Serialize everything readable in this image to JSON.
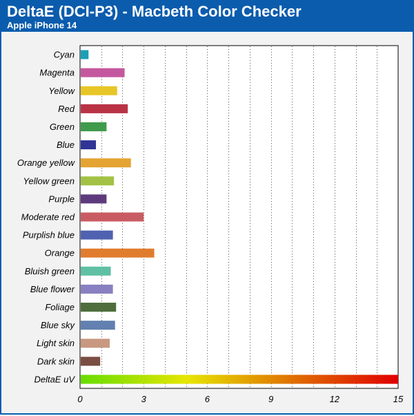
{
  "title": "DeltaE (DCI-P3) - Macbeth Color Checker",
  "subtitle": "Apple iPhone 14",
  "chart_data": {
    "type": "bar",
    "orientation": "horizontal",
    "grid": true,
    "xlim": [
      0,
      15
    ],
    "xticks": [
      0,
      3,
      6,
      9,
      12,
      15
    ],
    "categories": [
      "Cyan",
      "Magenta",
      "Yellow",
      "Red",
      "Green",
      "Blue",
      "Orange yellow",
      "Yellow green",
      "Purple",
      "Moderate red",
      "Purplish blue",
      "Orange",
      "Bluish green",
      "Blue flower",
      "Foliage",
      "Blue sky",
      "Light skin",
      "Dark skin",
      "DeltaE uV"
    ],
    "values": [
      0.4,
      2.1,
      1.75,
      2.25,
      1.25,
      0.75,
      2.4,
      1.6,
      1.25,
      3.0,
      1.55,
      3.5,
      1.45,
      1.55,
      1.7,
      1.65,
      1.4,
      0.95,
      15
    ],
    "colors": [
      "#1a9fb7",
      "#c4589e",
      "#e8c628",
      "#b93345",
      "#3f9a4c",
      "#2f3496",
      "#e4a433",
      "#a2c245",
      "#5e3a7c",
      "#c95c63",
      "#4f62b0",
      "#e07c2e",
      "#5fc0a4",
      "#8880c0",
      "#4f6e3c",
      "#6280b0",
      "#c89880",
      "#7a4e42",
      "gradient"
    ],
    "gradient_stops": [
      "#66dd00",
      "#e6e600",
      "#e07000",
      "#e00000"
    ]
  }
}
